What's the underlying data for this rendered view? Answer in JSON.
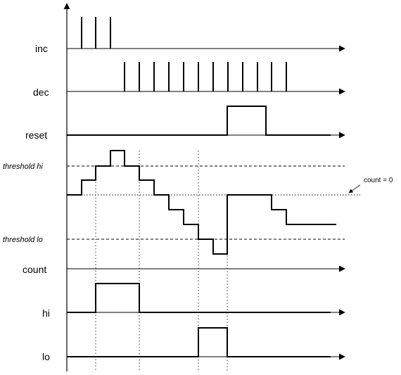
{
  "labels": {
    "inc": "inc",
    "dec": "dec",
    "reset": "reset",
    "threshold_hi": "threshold hi",
    "threshold_lo": "threshold lo",
    "count": "count",
    "hi": "hi",
    "lo": "lo",
    "count_zero": "count = 0"
  },
  "colors": {
    "line": "#000000",
    "background": "#ffffff"
  }
}
